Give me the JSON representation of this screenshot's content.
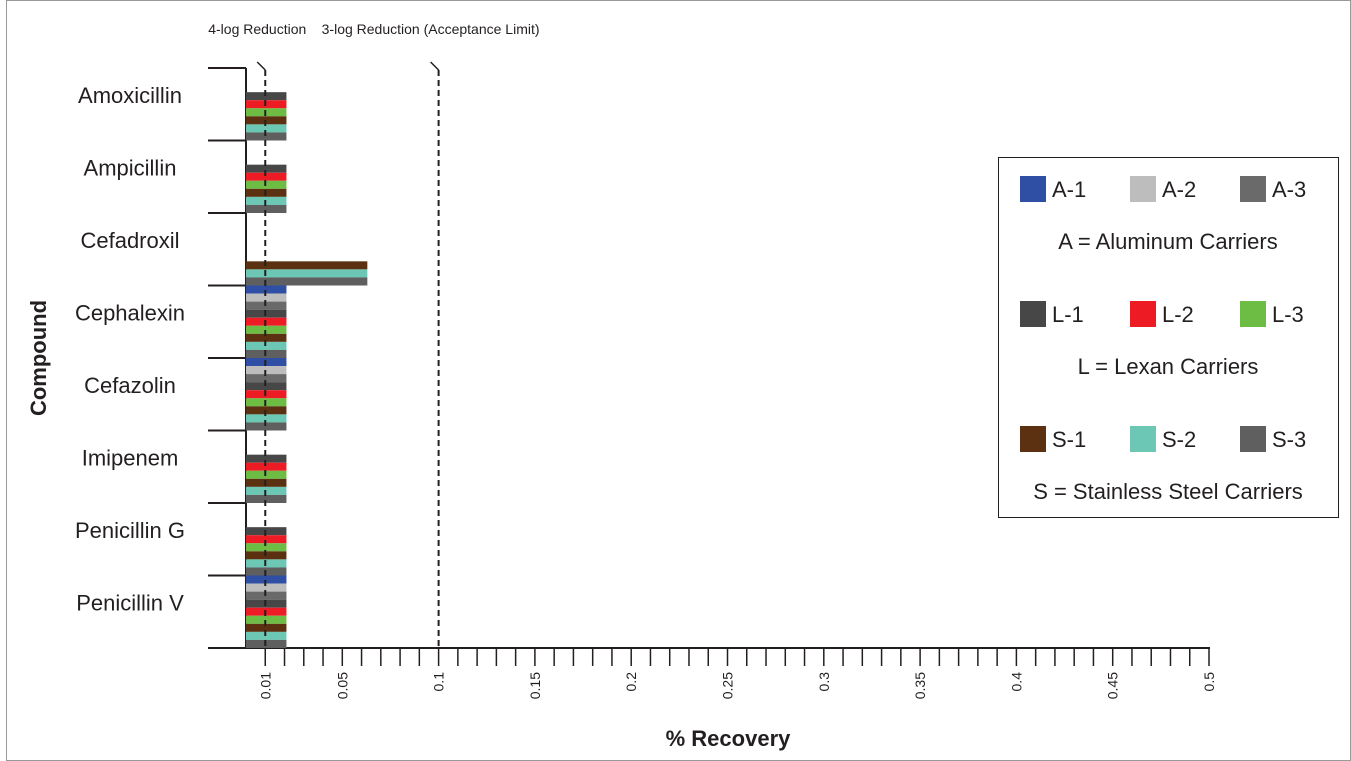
{
  "chart_data": {
    "type": "hbar",
    "x_label": "% Recovery",
    "y_label": "Compound",
    "categories": [
      "Amoxicillin",
      "Ampicillin",
      "Cefadroxil",
      "Cephalexin",
      "Cefazolin",
      "Imipenem",
      "Penicillin G",
      "Penicillin V"
    ],
    "series": [
      {
        "name": "A-1",
        "color": "#2e4fa3",
        "values": [
          null,
          null,
          null,
          0.021,
          0.021,
          null,
          null,
          0.021
        ]
      },
      {
        "name": "A-2",
        "color": "#bdbdbd",
        "values": [
          null,
          null,
          null,
          0.021,
          0.021,
          null,
          null,
          0.021
        ]
      },
      {
        "name": "A-3",
        "color": "#6a6a6a",
        "values": [
          null,
          null,
          null,
          0.021,
          0.021,
          null,
          null,
          0.021
        ]
      },
      {
        "name": "L-1",
        "color": "#474747",
        "values": [
          0.021,
          0.021,
          null,
          0.021,
          0.021,
          0.021,
          0.021,
          0.021
        ]
      },
      {
        "name": "L-2",
        "color": "#ed1c24",
        "values": [
          0.021,
          0.021,
          null,
          0.021,
          0.021,
          0.021,
          0.021,
          0.021
        ]
      },
      {
        "name": "L-3",
        "color": "#6dbd45",
        "values": [
          0.021,
          0.021,
          null,
          0.021,
          0.021,
          0.021,
          0.021,
          0.021
        ]
      },
      {
        "name": "S-1",
        "color": "#5c3111",
        "values": [
          0.021,
          0.021,
          0.063,
          0.021,
          0.021,
          0.021,
          0.021,
          0.021
        ]
      },
      {
        "name": "S-2",
        "color": "#6cc7b4",
        "values": [
          0.021,
          0.021,
          0.063,
          0.021,
          0.021,
          0.021,
          0.021,
          0.021
        ]
      },
      {
        "name": "S-3",
        "color": "#5f5f5f",
        "values": [
          0.021,
          0.021,
          0.063,
          0.021,
          0.021,
          0.021,
          0.021,
          0.021
        ]
      }
    ],
    "legend_notes": [
      "A = Aluminum Carriers",
      "L = Lexan Carriers",
      "S = Stainless Steel Carriers"
    ],
    "legend_position": "right",
    "xlim": [
      0,
      0.5
    ],
    "xticks": [
      0.01,
      0.05,
      0.1,
      0.15,
      0.2,
      0.25,
      0.3,
      0.35,
      0.4,
      0.45,
      0.5
    ],
    "xticks_minor": [
      0.02,
      0.03,
      0.04,
      0.06,
      0.07,
      0.08,
      0.09,
      0.11,
      0.12,
      0.13,
      0.14,
      0.16,
      0.17,
      0.18,
      0.19,
      0.21,
      0.22,
      0.23,
      0.24,
      0.26,
      0.27,
      0.28,
      0.29,
      0.31,
      0.32,
      0.33,
      0.34,
      0.36,
      0.37,
      0.38,
      0.39,
      0.41,
      0.42,
      0.43,
      0.44,
      0.46,
      0.47,
      0.48,
      0.49
    ],
    "reference_lines": [
      {
        "label": "4-log Reduction",
        "value": 0.01
      },
      {
        "label": "3-log Reduction (Acceptance Limit)",
        "value": 0.1
      }
    ]
  }
}
